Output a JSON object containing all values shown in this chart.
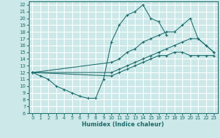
{
  "xlabel": "Humidex (Indice chaleur)",
  "bg_color": "#cce8e8",
  "grid_color": "#ffffff",
  "line_color": "#1a6b6b",
  "xlim": [
    -0.5,
    23.5
  ],
  "ylim": [
    6,
    22.5
  ],
  "xticks": [
    0,
    1,
    2,
    3,
    4,
    5,
    6,
    7,
    8,
    9,
    10,
    11,
    12,
    13,
    14,
    15,
    16,
    17,
    18,
    19,
    20,
    21,
    22,
    23
  ],
  "yticks": [
    6,
    7,
    8,
    9,
    10,
    11,
    12,
    13,
    14,
    15,
    16,
    17,
    18,
    19,
    20,
    21,
    22
  ],
  "line1_x": [
    0,
    1,
    2,
    3,
    4,
    5,
    6,
    7,
    8,
    9,
    10,
    11,
    12,
    13,
    14,
    15,
    16,
    17
  ],
  "line1_y": [
    12,
    11.5,
    11,
    10,
    9.5,
    9,
    8.5,
    8.2,
    8.2,
    11,
    16.5,
    19,
    20.5,
    21,
    22,
    20,
    19.5,
    17.5
  ],
  "line2_x": [
    0,
    10,
    11,
    12,
    13,
    14,
    15,
    16,
    17,
    18,
    19,
    20,
    21,
    22,
    23
  ],
  "line2_y": [
    12,
    13.5,
    14,
    15,
    15.5,
    16.5,
    17,
    17.5,
    18,
    18,
    19,
    20,
    17,
    16,
    15
  ],
  "line3_x": [
    0,
    10,
    11,
    12,
    13,
    14,
    15,
    16,
    17,
    18,
    19,
    20,
    21,
    22,
    23
  ],
  "line3_y": [
    12,
    12,
    12.5,
    13,
    13.5,
    14,
    14.5,
    15,
    15.5,
    16,
    16.5,
    17,
    17,
    16,
    15
  ],
  "line4_x": [
    0,
    10,
    11,
    12,
    13,
    14,
    15,
    16,
    17,
    18,
    19,
    20,
    21,
    22,
    23
  ],
  "line4_y": [
    12,
    11.5,
    12,
    12.5,
    13,
    13.5,
    14,
    14.5,
    14.5,
    15,
    15,
    14.5,
    14.5,
    14.5,
    14.5
  ]
}
